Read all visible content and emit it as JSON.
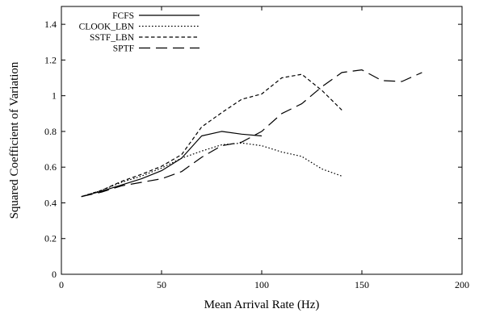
{
  "chart_data": {
    "type": "line",
    "title": "",
    "xlabel": "Mean Arrival Rate (Hz)",
    "ylabel": "Squared Coefficient of Variation",
    "xlim": [
      0,
      200
    ],
    "ylim": [
      0,
      1.5
    ],
    "xticks": [
      0,
      50,
      100,
      150,
      200
    ],
    "yticks": [
      0,
      0.2,
      0.4,
      0.6,
      0.8,
      1,
      1.2,
      1.4
    ],
    "grid": false,
    "legend_position": "top-left",
    "series": [
      {
        "name": "FCFS",
        "dash": "solid",
        "x": [
          10,
          20,
          30,
          40,
          50,
          60,
          70,
          80,
          90,
          100
        ],
        "y": [
          0.435,
          0.465,
          0.5,
          0.535,
          0.58,
          0.65,
          0.775,
          0.8,
          0.785,
          0.775
        ]
      },
      {
        "name": "CLOOK_LBN",
        "dash": "dotted",
        "x": [
          10,
          20,
          30,
          40,
          50,
          60,
          70,
          80,
          90,
          100,
          110,
          120,
          130,
          140
        ],
        "y": [
          0.435,
          0.47,
          0.515,
          0.55,
          0.595,
          0.65,
          0.69,
          0.725,
          0.735,
          0.72,
          0.685,
          0.66,
          0.59,
          0.55
        ]
      },
      {
        "name": "SSTF_LBN",
        "dash": "dashed",
        "x": [
          10,
          20,
          30,
          40,
          50,
          60,
          70,
          80,
          90,
          100,
          110,
          120,
          130,
          140
        ],
        "y": [
          0.435,
          0.47,
          0.52,
          0.56,
          0.605,
          0.67,
          0.825,
          0.905,
          0.98,
          1.01,
          1.1,
          1.12,
          1.03,
          0.92
        ]
      },
      {
        "name": "SPTF",
        "dash": "longdash",
        "x": [
          10,
          20,
          30,
          40,
          50,
          60,
          70,
          80,
          90,
          100,
          110,
          120,
          130,
          140,
          150,
          160,
          170,
          180
        ],
        "y": [
          0.435,
          0.46,
          0.495,
          0.515,
          0.535,
          0.575,
          0.655,
          0.72,
          0.74,
          0.8,
          0.9,
          0.955,
          1.05,
          1.13,
          1.145,
          1.085,
          1.08,
          1.13
        ]
      }
    ]
  }
}
